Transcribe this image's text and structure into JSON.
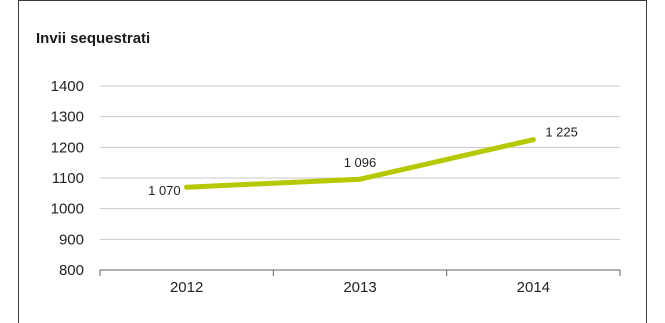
{
  "chart_data": {
    "type": "line",
    "title": "Invii sequestrati",
    "categories": [
      "2012",
      "2013",
      "2014"
    ],
    "series": [
      {
        "values": [
          1070,
          1096,
          1225
        ],
        "labels": [
          "1 070",
          "1 096",
          "1 225"
        ]
      }
    ],
    "ylim": [
      800,
      1400
    ],
    "yticks": [
      800,
      900,
      1000,
      1100,
      1200,
      1300,
      1400
    ],
    "ytick_labels": [
      "800",
      "900",
      "1000",
      "1100",
      "1200",
      "1300",
      "1400"
    ],
    "grid": true,
    "colors": {
      "line": "#b5c800",
      "grid": "#c8c8c8",
      "axis": "#666666"
    }
  }
}
